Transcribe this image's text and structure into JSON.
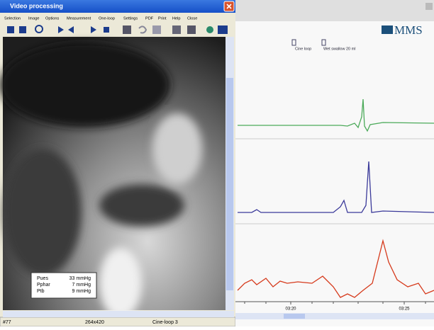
{
  "window": {
    "title": "Video processing",
    "menu": [
      "Selection",
      "Image",
      "Options",
      "Measurement",
      "One-loop",
      "Settings",
      "PDF",
      "Print",
      "Help",
      "Close"
    ]
  },
  "overlay": {
    "rows": [
      [
        "Pues",
        "33 mmHg"
      ],
      [
        "Pphar",
        "7 mmHg"
      ],
      [
        "Ptb",
        "9 mmHg"
      ]
    ]
  },
  "status": {
    "frame": "#77",
    "size": "264x420",
    "loop": "Cine-loop 3"
  },
  "recording": {
    "logo": "MMS",
    "markers": [
      "Cine loop",
      "Wet swallow 20 ml"
    ],
    "times": [
      "03:20",
      "03:25"
    ]
  }
}
